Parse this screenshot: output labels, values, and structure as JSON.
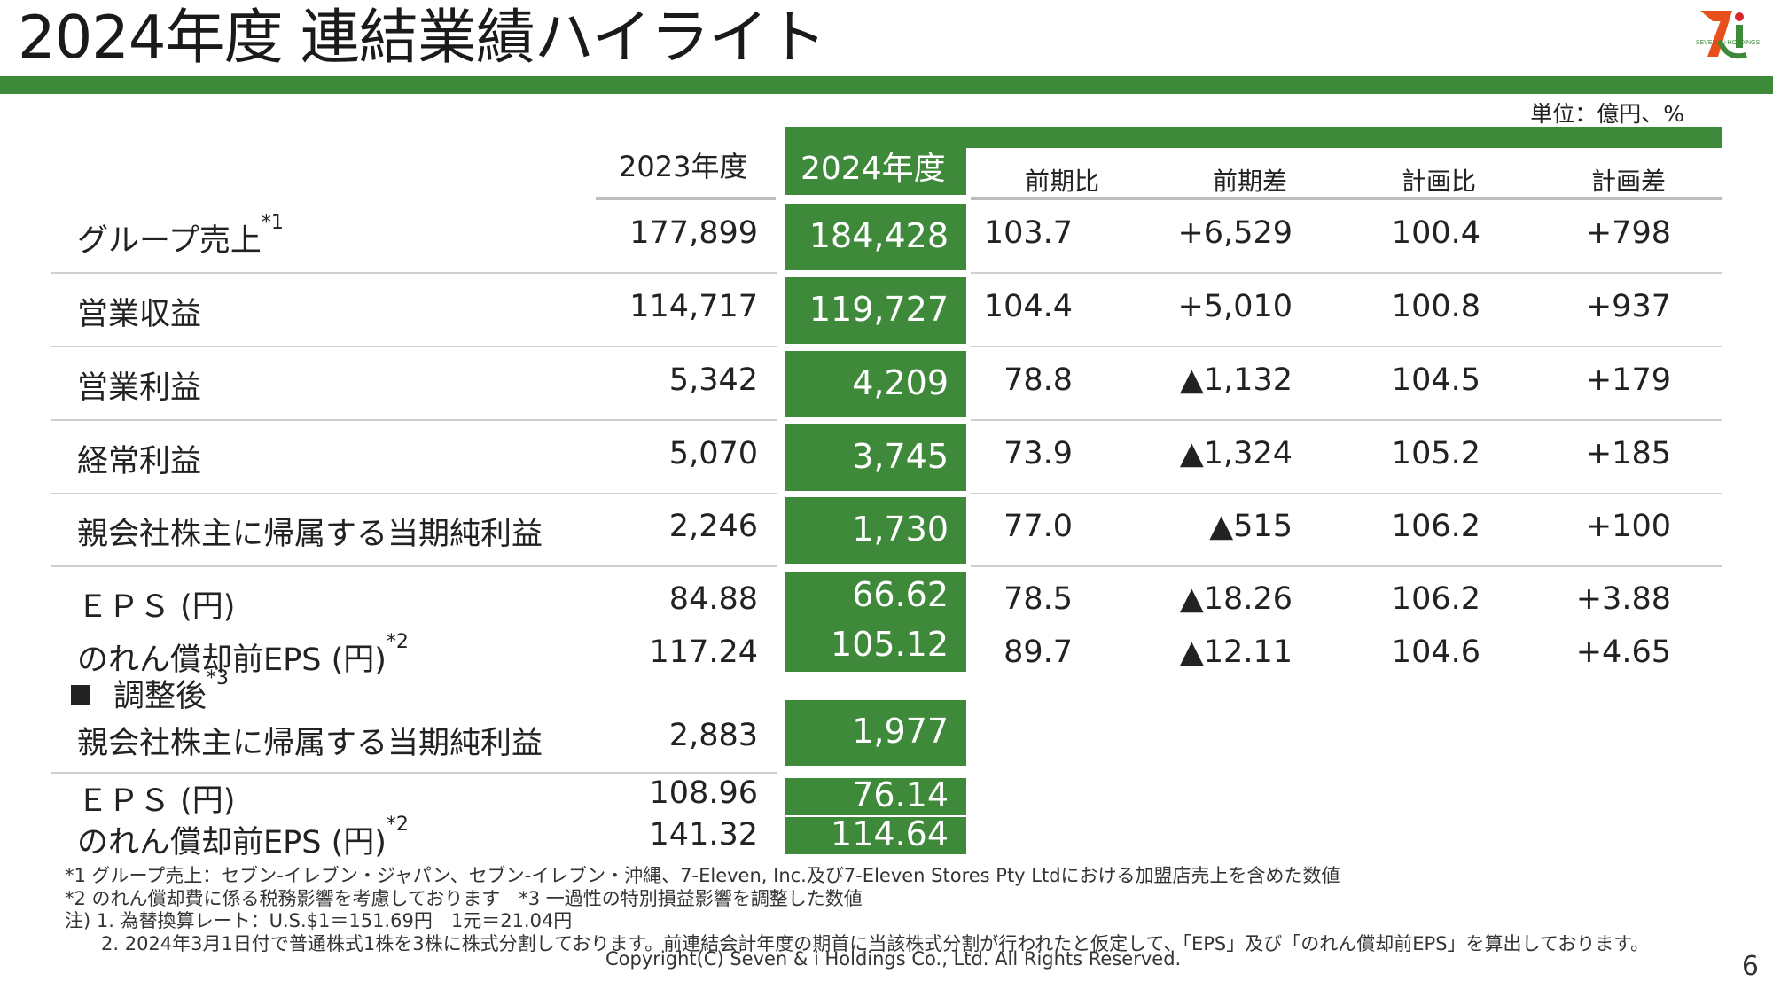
{
  "title": "2024年度 連結業績ハイライト",
  "unit": "単位：億円、%",
  "colors": {
    "accent": "#3f8a3a"
  },
  "logo": {
    "text": "SEVEN & i HOLDINGS",
    "mark": "7i"
  },
  "columns": {
    "prev_year": "2023年度",
    "cur_year": "2024年度",
    "yoy_ratio": "前期比",
    "yoy_diff": "前期差",
    "plan_ratio": "計画比",
    "plan_diff": "計画差"
  },
  "rows": [
    {
      "label": "グループ売上",
      "sup": "*1",
      "prev": "177,899",
      "cur": "184,428",
      "yoy_ratio": "103.7",
      "yoy_diff": "+6,529",
      "plan_ratio": "100.4",
      "plan_diff": "+798"
    },
    {
      "label": "営業収益",
      "sup": "",
      "prev": "114,717",
      "cur": "119,727",
      "yoy_ratio": "104.4",
      "yoy_diff": "+5,010",
      "plan_ratio": "100.8",
      "plan_diff": "+937"
    },
    {
      "label": "営業利益",
      "sup": "",
      "prev": "5,342",
      "cur": "4,209",
      "yoy_ratio": "78.8",
      "yoy_diff": "▲1,132",
      "plan_ratio": "104.5",
      "plan_diff": "+179"
    },
    {
      "label": "経常利益",
      "sup": "",
      "prev": "5,070",
      "cur": "3,745",
      "yoy_ratio": "73.9",
      "yoy_diff": "▲1,324",
      "plan_ratio": "105.2",
      "plan_diff": "+185"
    },
    {
      "label": "親会社株主に帰属する当期純利益",
      "sup": "",
      "prev": "2,246",
      "cur": "1,730",
      "yoy_ratio": "77.0",
      "yoy_diff": "▲515",
      "plan_ratio": "106.2",
      "plan_diff": "+100"
    },
    {
      "label": "ＥＰＳ (円)",
      "sup": "",
      "prev": "84.88",
      "cur": "66.62",
      "yoy_ratio": "78.5",
      "yoy_diff": "▲18.26",
      "plan_ratio": "106.2",
      "plan_diff": "+3.88"
    },
    {
      "label": "のれん償却前EPS (円)",
      "sup": "*2",
      "prev": "117.24",
      "cur": "105.12",
      "yoy_ratio": "89.7",
      "yoy_diff": "▲12.11",
      "plan_ratio": "104.6",
      "plan_diff": "+4.65"
    }
  ],
  "adjusted": {
    "heading": "調整後",
    "heading_sup": "*3",
    "rows": [
      {
        "label": "親会社株主に帰属する当期純利益",
        "sup": "",
        "prev": "2,883",
        "cur": "1,977"
      },
      {
        "label": "ＥＰＳ (円)",
        "sup": "",
        "prev": "108.96",
        "cur": "76.14"
      },
      {
        "label": "のれん償却前EPS (円)",
        "sup": "*2",
        "prev": "141.32",
        "cur": "114.64"
      }
    ]
  },
  "footnotes": [
    "*1 グループ売上：セブン‐イレブン・ジャパン、セブン‐イレブン・沖縄、7-Eleven, Inc.及び7-Eleven Stores Pty Ltdにおける加盟店売上を含めた数値",
    "*2 のれん償却費に係る税務影響を考慮しております　*3 一過性の特別損益影響を調整した数値",
    "注) 1. 為替換算レート：U.S.$1＝151.69円　1元＝21.04円",
    "2. 2024年3月1日付で普通株式1株を3株に株式分割しております。前連結会計年度の期首に当該株式分割が行われたと仮定して、「EPS」及び「のれん償却前EPS」を算出しております。"
  ],
  "copyright": "Copyright(C) Seven & i Holdings Co., Ltd. All Rights Reserved.",
  "page_number": "6"
}
